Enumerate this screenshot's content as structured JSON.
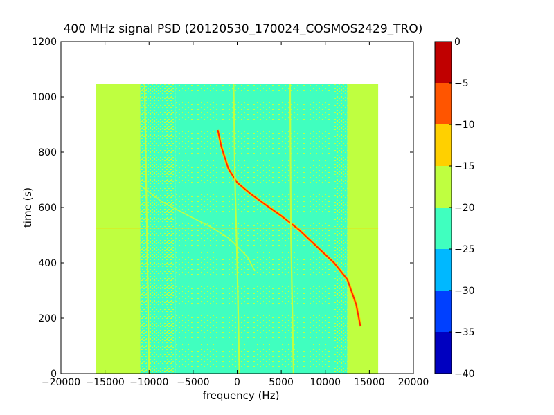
{
  "chart_data": {
    "type": "heatmap",
    "title": "400 MHz signal PSD (20120530_170024_COSMOS2429_TRO)",
    "xlabel": "frequency (Hz)",
    "ylabel": "time (s)",
    "xlim": [
      -20000,
      20000
    ],
    "ylim": [
      0,
      1200
    ],
    "xticks": [
      -20000,
      -15000,
      -10000,
      -5000,
      0,
      5000,
      10000,
      15000,
      20000
    ],
    "xtick_labels": [
      "−20000",
      "−15000",
      "−10000",
      "−5000",
      "0",
      "5000",
      "10000",
      "15000",
      "20000"
    ],
    "yticks": [
      0,
      200,
      400,
      600,
      800,
      1000,
      1200
    ],
    "ytick_labels": [
      "0",
      "200",
      "400",
      "600",
      "800",
      "1000",
      "1200"
    ],
    "data_extent": {
      "x": [
        -16000,
        16000
      ],
      "y": [
        0,
        1045
      ]
    },
    "grid": false,
    "colorbar": {
      "levels": [
        -40,
        -35,
        -30,
        -25,
        -20,
        -15,
        -10,
        -5,
        0
      ],
      "tick_labels": [
        "−40",
        "−35",
        "−30",
        "−25",
        "−20",
        "−15",
        "−10",
        "−5",
        "0"
      ],
      "colors": [
        "#0000c0",
        "#0040ff",
        "#00b8ff",
        "#40ffbf",
        "#bfff40",
        "#ffd000",
        "#ff5500",
        "#c00000"
      ]
    },
    "regions": [
      {
        "level": "-20 to -15",
        "x": [
          -16000,
          -11000
        ],
        "y": [
          0,
          1045
        ]
      },
      {
        "level": "-25 to -20 (mixed)",
        "x": [
          -11000,
          -7000
        ],
        "y": [
          0,
          1045
        ]
      },
      {
        "level": "-25 to -20",
        "x": [
          -7000,
          11000
        ],
        "y": [
          0,
          1045
        ]
      },
      {
        "level": "-25 to -20 (mixed)",
        "x": [
          11000,
          12500
        ],
        "y": [
          0,
          1045
        ]
      },
      {
        "level": "-20 to -15",
        "x": [
          12500,
          16000
        ],
        "y": [
          0,
          1045
        ]
      }
    ],
    "series": [
      {
        "level": "-5 to 0",
        "x": [
          -2200,
          -1800,
          -1000,
          0,
          1500,
          3000,
          5000,
          7000,
          9000,
          11000,
          12500,
          13500,
          14000
        ],
        "y": [
          880,
          820,
          740,
          690,
          650,
          615,
          570,
          520,
          460,
          400,
          340,
          250,
          170
        ]
      },
      {
        "level": "-20 to -15",
        "x": [
          -11000,
          -8500,
          -5500,
          -3000,
          -1000,
          0,
          1200,
          2000
        ],
        "y": [
          680,
          620,
          570,
          530,
          490,
          460,
          420,
          370
        ]
      },
      {
        "level": "-20 to -15",
        "x": [
          -400,
          -250,
          0,
          250
        ],
        "y": [
          1045,
          700,
          400,
          0
        ]
      },
      {
        "level": "-20 to -15",
        "x": [
          6000,
          6100,
          6400
        ],
        "y": [
          1045,
          500,
          0
        ]
      },
      {
        "level": "-20 to -15",
        "x": [
          -10500,
          -10000
        ],
        "y": [
          1045,
          0
        ]
      },
      {
        "level": "-20 to -15",
        "x": [
          -16000,
          16000
        ],
        "y": [
          525,
          525
        ]
      }
    ]
  }
}
